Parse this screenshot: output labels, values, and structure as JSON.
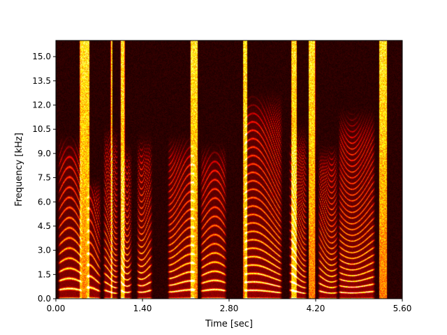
{
  "chart_data": {
    "type": "heatmap",
    "subtype": "spectrogram",
    "title": "",
    "xlabel": "Time [sec]",
    "ylabel": "Frequency [kHz]",
    "xlim": [
      0.0,
      5.6
    ],
    "ylim": [
      0.0,
      16.0
    ],
    "xticks": [
      0.0,
      1.4,
      2.8,
      4.2,
      5.6
    ],
    "xtick_labels": [
      "0.00",
      "1.40",
      "2.80",
      "4.20",
      "5.60"
    ],
    "yticks": [
      0.0,
      1.5,
      3.0,
      4.5,
      6.0,
      7.5,
      9.0,
      10.5,
      12.0,
      13.5,
      15.0
    ],
    "ytick_labels": [
      "0.0",
      "1.5",
      "3.0",
      "4.5",
      "6.0",
      "7.5",
      "9.0",
      "10.5",
      "12.0",
      "13.5",
      "15.0"
    ],
    "colormap": "hot",
    "grid": false,
    "voiced_segments": [
      {
        "start": 0.05,
        "end": 0.42,
        "f0_khz": 0.55,
        "upper_khz": 9.5
      },
      {
        "start": 0.5,
        "end": 0.72,
        "f0_khz": 0.6,
        "upper_khz": 7.0
      },
      {
        "start": 0.78,
        "end": 1.0,
        "f0_khz": 0.45,
        "upper_khz": 10.0
      },
      {
        "start": 1.05,
        "end": 1.22,
        "f0_khz": 0.5,
        "upper_khz": 9.0
      },
      {
        "start": 1.32,
        "end": 1.55,
        "f0_khz": 0.5,
        "upper_khz": 9.5
      },
      {
        "start": 1.82,
        "end": 2.25,
        "f0_khz": 0.5,
        "upper_khz": 9.5
      },
      {
        "start": 2.35,
        "end": 2.75,
        "f0_khz": 0.5,
        "upper_khz": 9.0
      },
      {
        "start": 3.05,
        "end": 3.65,
        "f0_khz": 0.45,
        "upper_khz": 12.0
      },
      {
        "start": 3.78,
        "end": 4.05,
        "f0_khz": 0.45,
        "upper_khz": 10.0
      },
      {
        "start": 4.25,
        "end": 4.55,
        "f0_khz": 0.45,
        "upper_khz": 9.0
      },
      {
        "start": 4.58,
        "end": 5.15,
        "f0_khz": 0.45,
        "upper_khz": 11.0
      }
    ],
    "fricative_bursts": [
      {
        "start": 0.38,
        "end": 0.55
      },
      {
        "start": 0.88,
        "end": 0.92
      },
      {
        "start": 1.04,
        "end": 1.12
      },
      {
        "start": 2.17,
        "end": 2.3
      },
      {
        "start": 3.02,
        "end": 3.1
      },
      {
        "start": 3.8,
        "end": 3.9
      },
      {
        "start": 4.08,
        "end": 4.2
      },
      {
        "start": 5.22,
        "end": 5.36
      }
    ]
  }
}
